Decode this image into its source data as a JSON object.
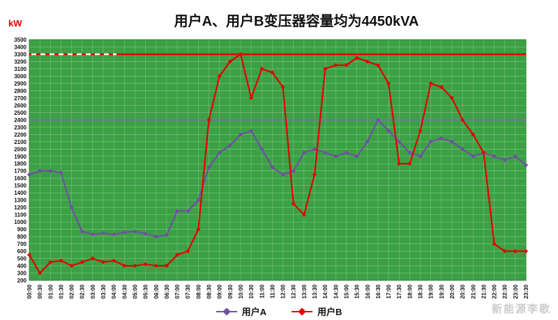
{
  "title": "用户A、用户B变压器容量均为4450kVA",
  "y_axis_unit": "kW",
  "watermark": "新能源李歌",
  "colors": {
    "background": "#3BA144",
    "grid": "rgba(255,255,255,0.38)",
    "plot_border": "#2e8038",
    "series_a": "#7050A5",
    "series_b": "#e60000",
    "ref_red": "#e60000",
    "ref_purple": "#9460C8",
    "axis_text": "#111111"
  },
  "chart_data": {
    "type": "line",
    "title": "用户A、用户B变压器容量均为4450kVA",
    "ylabel": "kW",
    "xlabel": "",
    "ylim": [
      200,
      3500
    ],
    "ytick_step": 100,
    "grid": true,
    "legend_position": "bottom",
    "x_tick_rotation": "vertical",
    "x": [
      "00:00",
      "00:30",
      "01:00",
      "01:30",
      "02:00",
      "02:30",
      "03:00",
      "03:30",
      "04:00",
      "04:30",
      "05:00",
      "05:30",
      "06:00",
      "06:30",
      "07:00",
      "07:30",
      "08:00",
      "08:30",
      "09:00",
      "09:30",
      "10:00",
      "10:30",
      "11:00",
      "11:30",
      "12:00",
      "12:30",
      "13:00",
      "13:30",
      "14:00",
      "14:30",
      "15:00",
      "15:30",
      "16:00",
      "16:30",
      "17:00",
      "17:30",
      "18:00",
      "18:30",
      "19:00",
      "19:30",
      "20:00",
      "20:30",
      "21:00",
      "21:30",
      "22:00",
      "22:30",
      "23:00",
      "23:30"
    ],
    "series": [
      {
        "name": "用户A",
        "color": "#7050A5",
        "values": [
          1650,
          1700,
          1700,
          1680,
          1200,
          870,
          830,
          850,
          830,
          860,
          870,
          840,
          800,
          820,
          1150,
          1150,
          1300,
          1750,
          1950,
          2050,
          2200,
          2250,
          2000,
          1750,
          1650,
          1700,
          1950,
          2000,
          1950,
          1900,
          1950,
          1900,
          2100,
          2400,
          2250,
          2100,
          1950,
          1900,
          2100,
          2150,
          2100,
          2000,
          1900,
          1950,
          1900,
          1850,
          1900,
          1780
        ]
      },
      {
        "name": "用户B",
        "color": "#e60000",
        "values": [
          550,
          300,
          450,
          470,
          400,
          450,
          500,
          450,
          470,
          400,
          400,
          420,
          400,
          400,
          550,
          600,
          900,
          2400,
          3000,
          3200,
          3300,
          2700,
          3100,
          3050,
          2850,
          1250,
          1100,
          1650,
          3100,
          3150,
          3150,
          3250,
          3200,
          3150,
          2900,
          1800,
          1800,
          2250,
          2900,
          2850,
          2700,
          2400,
          2200,
          1950,
          700,
          600,
          600,
          600
        ]
      }
    ],
    "ref_lines": [
      {
        "value": 3300,
        "color": "#e60000",
        "style": "dashed-white-overlay"
      },
      {
        "value": 2400,
        "color": "#9460C8",
        "style": "solid"
      }
    ]
  }
}
